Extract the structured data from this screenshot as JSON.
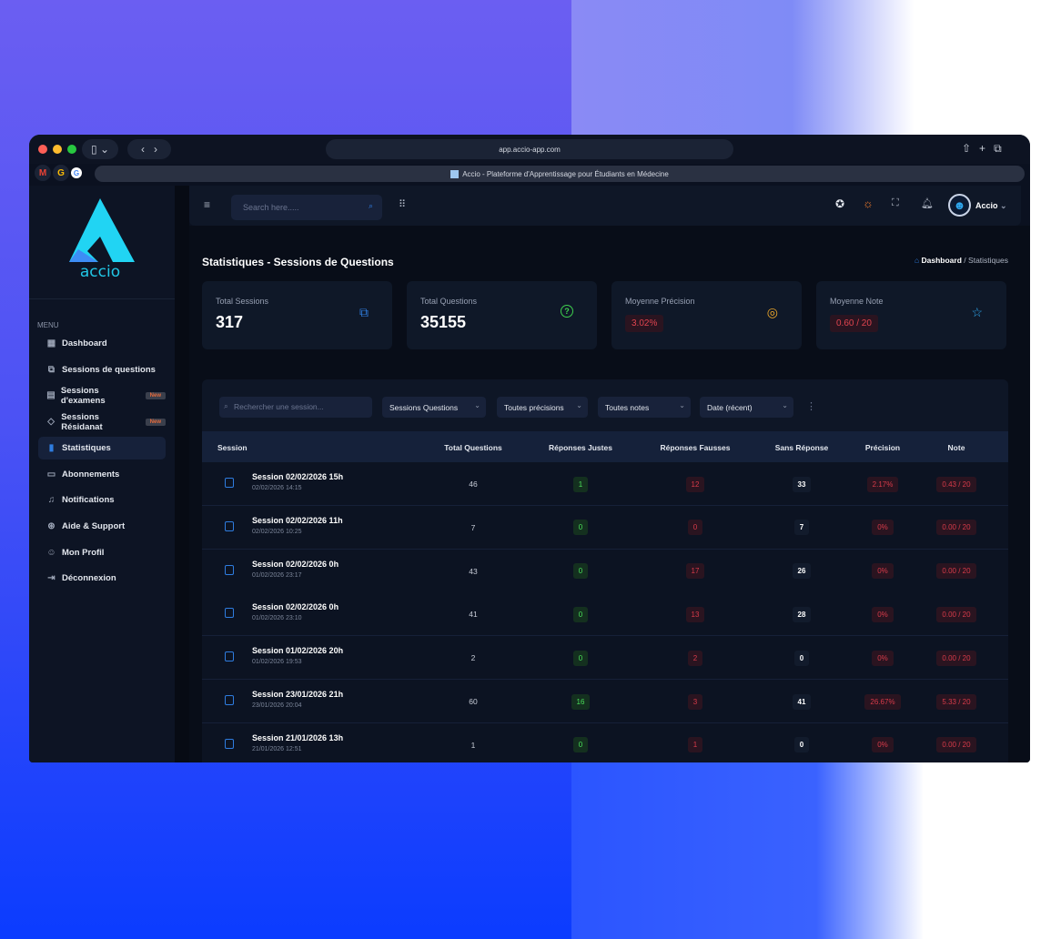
{
  "browser": {
    "url": "app.accio-app.com",
    "tab_title": "Accio - Plateforme d'Apprentissage pour Étudiants en Médecine",
    "bookmarks": [
      "M",
      "G",
      "G"
    ]
  },
  "sidebar": {
    "logo_text": "accio",
    "menu_label": "MENU",
    "items": [
      {
        "label": "Dashboard",
        "icon": "grid-icon"
      },
      {
        "label": "Sessions de questions",
        "icon": "question-copy-icon"
      },
      {
        "label": "Sessions d'examens",
        "icon": "clipboard-icon",
        "badge": "New"
      },
      {
        "label": "Sessions Résidanat",
        "icon": "graduation-cap-icon",
        "badge": "New"
      },
      {
        "label": "Statistiques",
        "icon": "bar-chart-icon",
        "active": true
      },
      {
        "label": "Abonnements",
        "icon": "credit-card-icon"
      },
      {
        "label": "Notifications",
        "icon": "bell-icon"
      },
      {
        "label": "Aide & Support",
        "icon": "lifebuoy-icon"
      },
      {
        "label": "Mon Profil",
        "icon": "user-circle-icon"
      },
      {
        "label": "Déconnexion",
        "icon": "logout-icon"
      }
    ]
  },
  "header": {
    "search_placeholder": "Search here.....",
    "user_name": "Accio"
  },
  "page": {
    "title": "Statistiques - Sessions de Questions",
    "breadcrumb": [
      "Dashboard",
      "Statistiques"
    ]
  },
  "cards": [
    {
      "label": "Total Sessions",
      "value": "317",
      "icon": "question-copy-icon",
      "color": "#2f7de0"
    },
    {
      "label": "Total Questions",
      "value": "35155",
      "icon": "question-circle-icon",
      "color": "#3ecf4e"
    },
    {
      "label": "Moyenne Précision",
      "value": "3.02%",
      "icon": "target-icon",
      "color": "#f0a92a"
    },
    {
      "label": "Moyenne Note",
      "value": "0.60 / 20",
      "icon": "star-icon",
      "color": "#2fa8f0"
    }
  ],
  "filters": {
    "search_placeholder": "Rechercher une session...",
    "selects": [
      "Sessions Questions",
      "Toutes précisions",
      "Toutes notes",
      "Date (récent)"
    ]
  },
  "table": {
    "columns": [
      "Session",
      "Total Questions",
      "Réponses Justes",
      "Réponses Fausses",
      "Sans Réponse",
      "Précision",
      "Note"
    ],
    "rows": [
      {
        "name": "Session 02/02/2026 15h",
        "date": "02/02/2026 14:15",
        "total": "46",
        "justes": "1",
        "fausses": "12",
        "sans": "33",
        "precision": "2.17%",
        "note": "0.43 / 20"
      },
      {
        "name": "Session 02/02/2026 11h",
        "date": "02/02/2026 10:25",
        "total": "7",
        "justes": "0",
        "fausses": "0",
        "sans": "7",
        "precision": "0%",
        "note": "0.00 / 20"
      },
      {
        "name": "Session 02/02/2026 0h",
        "date": "01/02/2026 23:17",
        "total": "43",
        "justes": "0",
        "fausses": "17",
        "sans": "26",
        "precision": "0%",
        "note": "0.00 / 20"
      },
      {
        "name": "Session 02/02/2026 0h",
        "date": "01/02/2026 23:10",
        "total": "41",
        "justes": "0",
        "fausses": "13",
        "sans": "28",
        "precision": "0%",
        "note": "0.00 / 20"
      },
      {
        "name": "Session 01/02/2026 20h",
        "date": "01/02/2026 19:53",
        "total": "2",
        "justes": "0",
        "fausses": "2",
        "sans": "0",
        "precision": "0%",
        "note": "0.00 / 20"
      },
      {
        "name": "Session 23/01/2026 21h",
        "date": "23/01/2026 20:04",
        "total": "60",
        "justes": "16",
        "fausses": "3",
        "sans": "41",
        "precision": "26.67%",
        "note": "5.33 / 20"
      },
      {
        "name": "Session 21/01/2026 13h",
        "date": "21/01/2026 12:51",
        "total": "1",
        "justes": "0",
        "fausses": "1",
        "sans": "0",
        "precision": "0%",
        "note": "0.00 / 20"
      }
    ]
  }
}
